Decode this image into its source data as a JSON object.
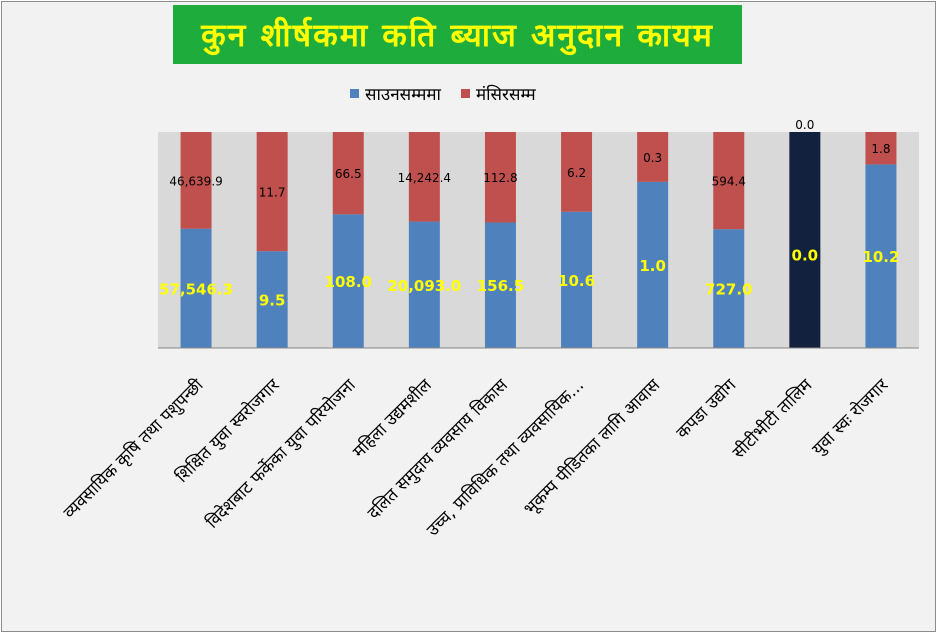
{
  "chart_data": {
    "type": "bar",
    "stacked": true,
    "normalized": true,
    "title": "कुन शीर्षकमा कति ब्याज अनुदान कायम",
    "categories": [
      "व्यवसायिक कृषि तथा पशुपन्छी",
      "शिक्षित युवा स्वरोजगार",
      "विदेशबाट फर्केका युवा परियोजना",
      "महिला उद्यमशील",
      "दलित समुदाय व्यवसाय विकास",
      "उच्च, प्राविधिक तथा व्यवसायिक...",
      "भूकम्प पीडितका लागि आवास",
      "कपडा उद्योग",
      "सीटीभीटी तालिम",
      "युवा स्वः रोजगार"
    ],
    "series": [
      {
        "name": "साउनसम्ममा",
        "color": "#4f81bd",
        "values": [
          57546.3,
          9.5,
          108.0,
          20093.0,
          156.5,
          10.6,
          1.0,
          727.0,
          0.0,
          10.2
        ],
        "labels": [
          "57,546.3",
          "9.5",
          "108.0",
          "20,093.0",
          "156.5",
          "10.6",
          "1.0",
          "727.0",
          "0.0",
          "10.2"
        ],
        "label_color": "#ffff00"
      },
      {
        "name": "मंसिरसम्म",
        "color": "#c0504d",
        "values": [
          46639.9,
          11.7,
          66.5,
          14242.4,
          112.8,
          6.2,
          0.3,
          594.4,
          0.0,
          1.8
        ],
        "labels": [
          "46,639.9",
          "11.7",
          "66.5",
          "14,242.4",
          "112.8",
          "6.2",
          "0.3",
          "594.4",
          "0.0",
          "1.8"
        ],
        "label_color": "#000000"
      }
    ],
    "ylim": [
      0,
      1
    ],
    "legend": "top",
    "grid": false,
    "colors": {
      "plot_background": "#d9d9d9",
      "chart_background": "#f2f2f2",
      "title_background": "#1ead3c",
      "title_text": "#ffff00",
      "zero_fill": "#12223e"
    }
  }
}
